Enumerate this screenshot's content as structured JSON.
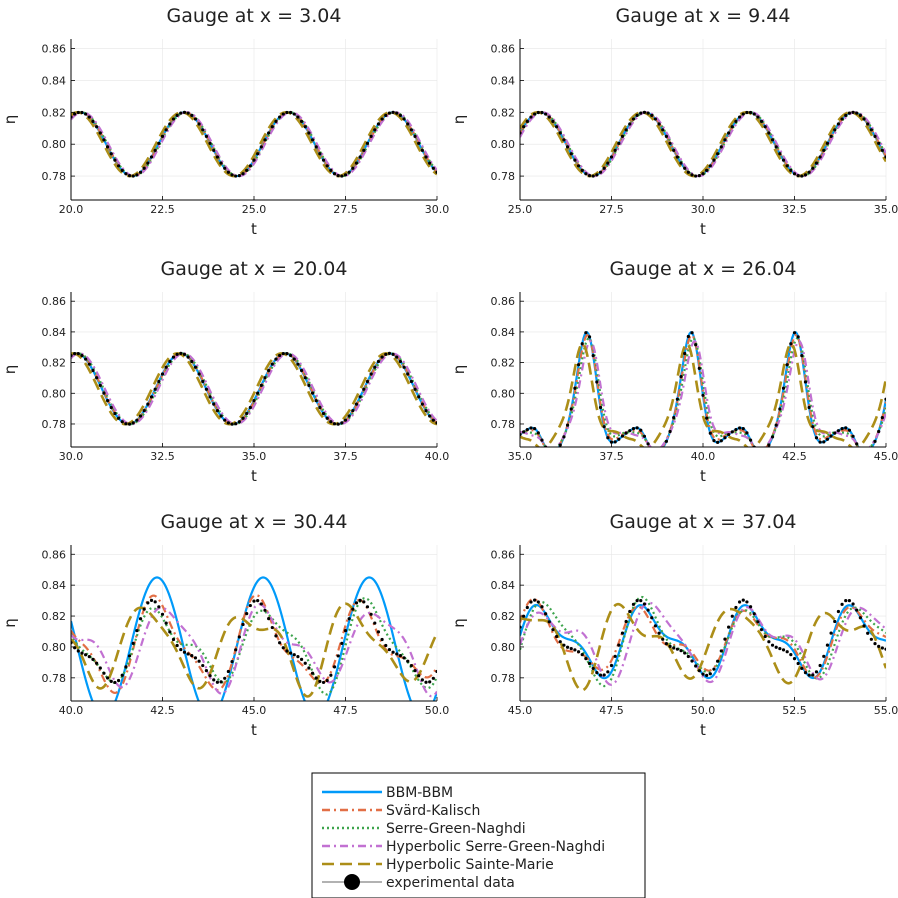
{
  "chart_data": [
    {
      "type": "line",
      "title": "Gauge at x = 3.04",
      "xlabel": "t",
      "ylabel": "η",
      "xlim": [
        20.0,
        30.0
      ],
      "ylim": [
        0.765,
        0.866
      ],
      "xticks": [
        20.0,
        22.5,
        25.0,
        27.5,
        30.0
      ],
      "xtick_labels": [
        "20.0",
        "22.5",
        "25.0",
        "27.5",
        "30.0"
      ],
      "yticks": [
        0.78,
        0.8,
        0.82,
        0.84,
        0.86
      ],
      "ytick_labels": [
        "0.78",
        "0.80",
        "0.82",
        "0.84",
        "0.86"
      ],
      "grid": true,
      "period": 2.85,
      "peak_time": 23.1,
      "amplitude": 0.02,
      "mean": 0.8,
      "sharpness": 0,
      "secondary": 0,
      "model_jitter": 0.6
    },
    {
      "type": "line",
      "title": "Gauge at x = 9.44",
      "xlabel": "t",
      "ylabel": "η",
      "xlim": [
        25.0,
        35.0
      ],
      "ylim": [
        0.765,
        0.866
      ],
      "xticks": [
        25.0,
        27.5,
        30.0,
        32.5,
        35.0
      ],
      "xtick_labels": [
        "25.0",
        "27.5",
        "30.0",
        "32.5",
        "35.0"
      ],
      "yticks": [
        0.78,
        0.8,
        0.82,
        0.84,
        0.86
      ],
      "ytick_labels": [
        "0.78",
        "0.80",
        "0.82",
        "0.84",
        "0.86"
      ],
      "grid": true,
      "period": 2.85,
      "peak_time": 28.4,
      "amplitude": 0.02,
      "mean": 0.8,
      "sharpness": 0,
      "secondary": 0,
      "model_jitter": 0.6
    },
    {
      "type": "line",
      "title": "Gauge at x = 20.04",
      "xlabel": "t",
      "ylabel": "η",
      "xlim": [
        30.0,
        40.0
      ],
      "ylim": [
        0.765,
        0.866
      ],
      "xticks": [
        30.0,
        32.5,
        35.0,
        37.5,
        40.0
      ],
      "xtick_labels": [
        "30.0",
        "32.5",
        "35.0",
        "37.5",
        "40.0"
      ],
      "yticks": [
        0.78,
        0.8,
        0.82,
        0.84,
        0.86
      ],
      "ytick_labels": [
        "0.78",
        "0.80",
        "0.82",
        "0.84",
        "0.86"
      ],
      "grid": true,
      "period": 2.85,
      "peak_time": 33.0,
      "amplitude": 0.024,
      "mean": 0.802,
      "sharpness": 0.25,
      "secondary": 0,
      "model_jitter": 0.8
    },
    {
      "type": "line",
      "title": "Gauge at x = 26.04",
      "xlabel": "t",
      "ylabel": "η",
      "xlim": [
        35.0,
        45.0
      ],
      "ylim": [
        0.765,
        0.866
      ],
      "xticks": [
        35.0,
        37.5,
        40.0,
        42.5,
        45.0
      ],
      "xtick_labels": [
        "35.0",
        "37.5",
        "40.0",
        "42.5",
        "45.0"
      ],
      "yticks": [
        0.78,
        0.8,
        0.82,
        0.84,
        0.86
      ],
      "ytick_labels": [
        "0.78",
        "0.80",
        "0.82",
        "0.84",
        "0.86"
      ],
      "grid": true,
      "period": 2.85,
      "peak_time": 36.85,
      "amplitude": 0.035,
      "mean": 0.795,
      "sharpness": 3.0,
      "secondary": 0.55,
      "model_jitter": 1.0
    },
    {
      "type": "line",
      "title": "Gauge at x = 30.44",
      "xlabel": "t",
      "ylabel": "η",
      "xlim": [
        40.0,
        50.0
      ],
      "ylim": [
        0.765,
        0.866
      ],
      "xticks": [
        40.0,
        42.5,
        45.0,
        47.5,
        50.0
      ],
      "xtick_labels": [
        "40.0",
        "42.5",
        "45.0",
        "47.5",
        "50.0"
      ],
      "yticks": [
        0.78,
        0.8,
        0.82,
        0.84,
        0.86
      ],
      "ytick_labels": [
        "0.78",
        "0.80",
        "0.82",
        "0.84",
        "0.86"
      ],
      "grid": true,
      "period": 2.85,
      "peak_time": 42.35,
      "amplitude": 0.025,
      "mean": 0.8,
      "sharpness": 1.0,
      "secondary": 0.9,
      "model_jitter": 2.5
    },
    {
      "type": "line",
      "title": "Gauge at x = 37.04",
      "xlabel": "t",
      "ylabel": "η",
      "xlim": [
        45.0,
        55.0
      ],
      "ylim": [
        0.765,
        0.866
      ],
      "xticks": [
        45.0,
        47.5,
        50.0,
        52.5,
        55.0
      ],
      "xtick_labels": [
        "45.0",
        "47.5",
        "50.0",
        "52.5",
        "55.0"
      ],
      "yticks": [
        0.78,
        0.8,
        0.82,
        0.84,
        0.86
      ],
      "ytick_labels": [
        "0.78",
        "0.80",
        "0.82",
        "0.84",
        "0.86"
      ],
      "grid": true,
      "period": 2.85,
      "peak_time": 45.55,
      "amplitude": 0.022,
      "mean": 0.803,
      "sharpness": 0.6,
      "secondary": 1.0,
      "model_jitter": 3.0
    }
  ],
  "legend": {
    "placement": "bottom-center",
    "entries": [
      {
        "label": "BBM-BBM",
        "color": "#009af9",
        "dash": "solid",
        "marker": false
      },
      {
        "label": "Svärd-Kalisch",
        "color": "#e26f46",
        "dash": "dashdot",
        "marker": false
      },
      {
        "label": "Serre-Green-Naghdi",
        "color": "#3da44d",
        "dash": "dot",
        "marker": false
      },
      {
        "label": "Hyperbolic Serre-Green-Naghdi",
        "color": "#c271d2",
        "dash": "dashdot",
        "marker": false
      },
      {
        "label": "Hyperbolic Sainte-Marie",
        "color": "#ac8e18",
        "dash": "longdash",
        "marker": false
      },
      {
        "label": "experimental data",
        "color": "#000000",
        "dash": "none",
        "marker": true
      }
    ]
  }
}
